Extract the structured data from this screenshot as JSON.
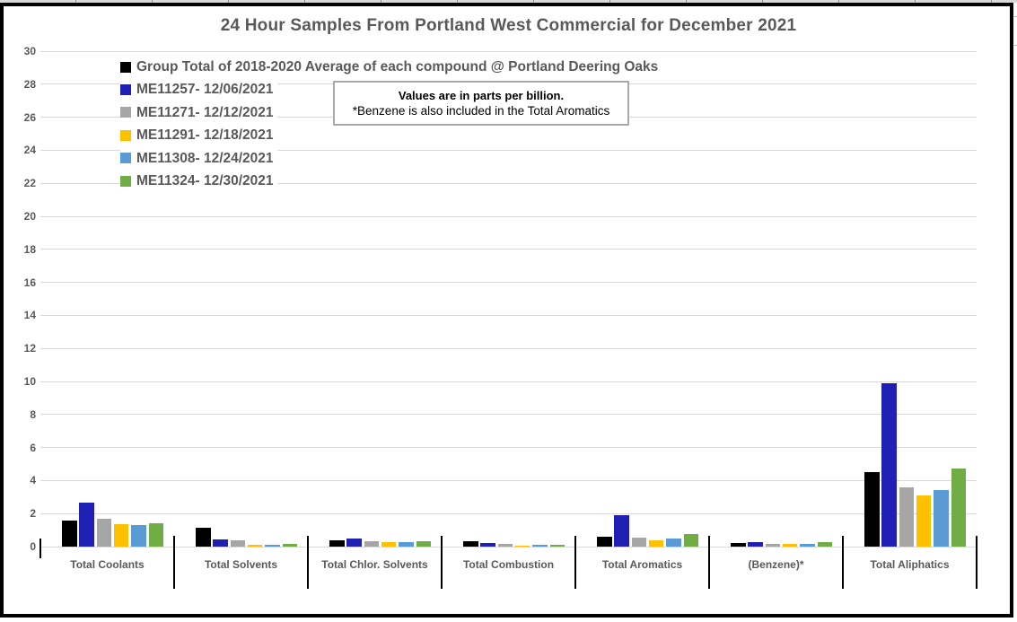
{
  "chart_data": {
    "type": "bar",
    "title": "24 Hour Samples From Portland West Commercial for December 2021",
    "annotation": {
      "line1": "Values are in parts per billion.",
      "line2": "*Benzene is also included in the Total Aromatics"
    },
    "categories": [
      "Total Coolants",
      "Total Solvents",
      "Total Chlor. Solvents",
      "Total Combustion",
      "Total Aromatics",
      "(Benzene)*",
      "Total Aliphatics"
    ],
    "series": [
      {
        "name": "Group Total of 2018-2020 Average of each compound @ Portland Deering Oaks",
        "color": "#000000",
        "values": [
          1.55,
          1.15,
          0.4,
          0.3,
          0.6,
          0.2,
          4.5
        ]
      },
      {
        "name": "ME11257- 12/06/2021",
        "color": "#1F1FB4",
        "values": [
          2.65,
          0.45,
          0.5,
          0.2,
          1.9,
          0.25,
          9.9
        ]
      },
      {
        "name": "ME11271- 12/12/2021",
        "color": "#A6A6A6",
        "values": [
          1.7,
          0.4,
          0.3,
          0.15,
          0.55,
          0.15,
          3.6
        ]
      },
      {
        "name": "ME11291- 12/18/2021",
        "color": "#FFC000",
        "values": [
          1.35,
          0.1,
          0.25,
          0.05,
          0.4,
          0.15,
          3.1
        ]
      },
      {
        "name": "ME11308- 12/24/2021",
        "color": "#5B9BD5",
        "values": [
          1.3,
          0.1,
          0.25,
          0.1,
          0.5,
          0.15,
          3.45
        ]
      },
      {
        "name": "ME11324- 12/30/2021",
        "color": "#70AD47",
        "values": [
          1.4,
          0.15,
          0.3,
          0.12,
          0.75,
          0.25,
          4.75
        ]
      }
    ],
    "ylim": [
      0,
      30
    ],
    "ytick_step": 2,
    "grid": "horizontal",
    "legend_position": "top-left-inside"
  },
  "colors": {
    "text": "#595959",
    "gridline": "#D9D9D9",
    "frame_border": "#000000",
    "note_border": "#A9A9A9",
    "background": "#FFFFFF"
  }
}
